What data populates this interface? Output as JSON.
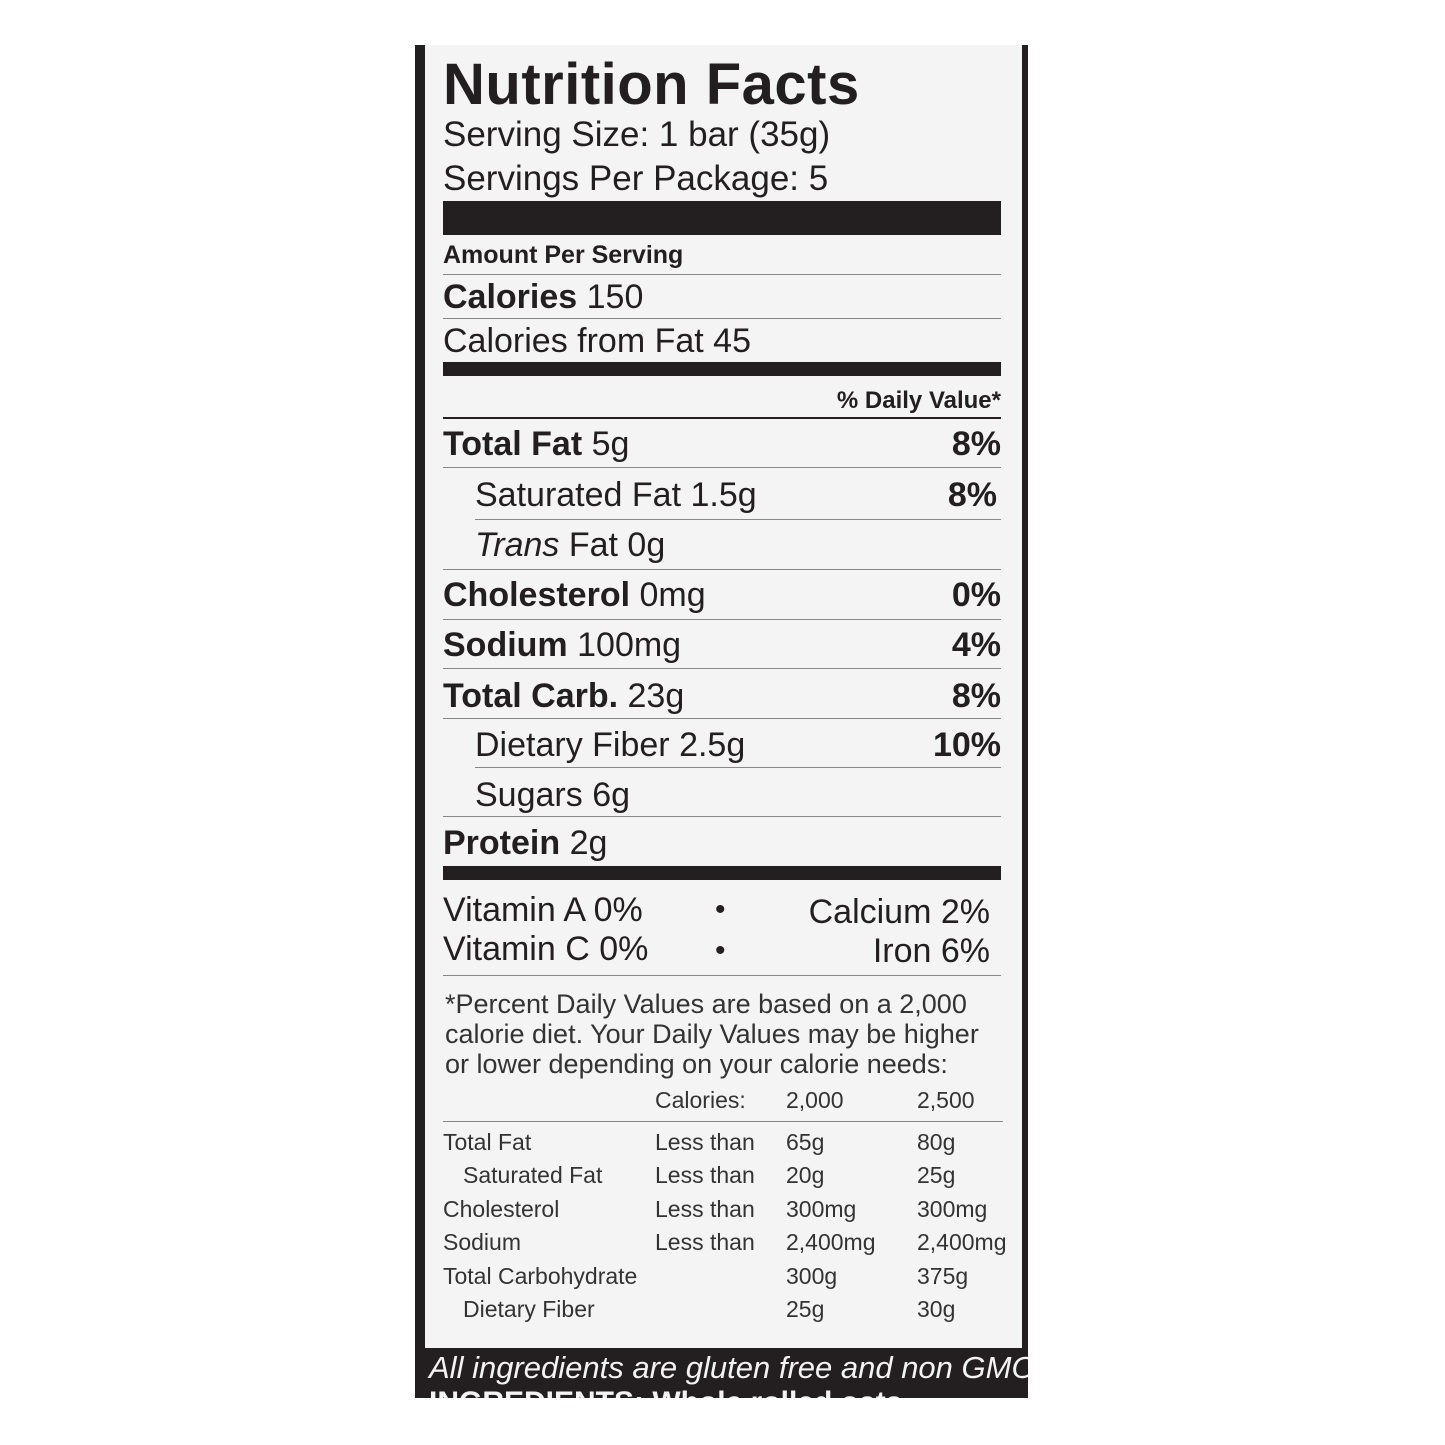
{
  "title": "Nutrition Facts",
  "serving_size": "Serving Size: 1 bar (35g)",
  "servings_per_package": "Servings Per Package: 5",
  "amount_per_serving": "Amount Per Serving",
  "calories": {
    "label": "Calories",
    "value": "150"
  },
  "calories_from_fat": "Calories from Fat 45",
  "daily_value_header": "% Daily Value*",
  "nutrients": [
    {
      "label": "Total Fat",
      "amount": "5g",
      "dv": "8%"
    },
    {
      "label": "Saturated Fat",
      "amount": "1.5g",
      "dv": "8%"
    },
    {
      "label": "Trans",
      "amount": "Fat 0g",
      "dv": ""
    },
    {
      "label": "Cholesterol",
      "amount": "0mg",
      "dv": "0%"
    },
    {
      "label": "Sodium",
      "amount": "100mg",
      "dv": "4%"
    },
    {
      "label": "Total Carb.",
      "amount": "23g",
      "dv": "8%"
    },
    {
      "label": "Dietary Fiber",
      "amount": "2.5g",
      "dv": "10%"
    },
    {
      "label": "Sugars",
      "amount": "6g",
      "dv": ""
    },
    {
      "label": "Protein",
      "amount": "2g",
      "dv": ""
    }
  ],
  "vitamins": {
    "vitamin_a": "Vitamin A 0%",
    "vitamin_c": "Vitamin C 0%",
    "calcium": "Calcium 2%",
    "iron": "Iron 6%",
    "bullet": "•"
  },
  "footnote": [
    "*Percent Daily Values are based on a 2,000",
    "calorie diet. Your Daily Values may be higher",
    "or lower depending on your calorie needs:"
  ],
  "dv_table": {
    "header": [
      "",
      "Calories:",
      "2,000",
      "2,500"
    ],
    "rows": [
      [
        "Total Fat",
        "Less than",
        "65g",
        "80g"
      ],
      [
        "Saturated Fat",
        "Less than",
        "20g",
        "25g"
      ],
      [
        "Cholesterol",
        "Less than",
        "300mg",
        "300mg"
      ],
      [
        "Sodium",
        "Less than",
        "2,400mg",
        "2,400mg"
      ],
      [
        "Total Carbohydrate",
        "",
        "300g",
        "375g"
      ],
      [
        "Dietary Fiber",
        "",
        "25g",
        "30g"
      ]
    ]
  },
  "gluten_note": "All ingredients are gluten free and non GMO.",
  "ingredients_partial": "INGREDIENTS: Whole rolled oats"
}
